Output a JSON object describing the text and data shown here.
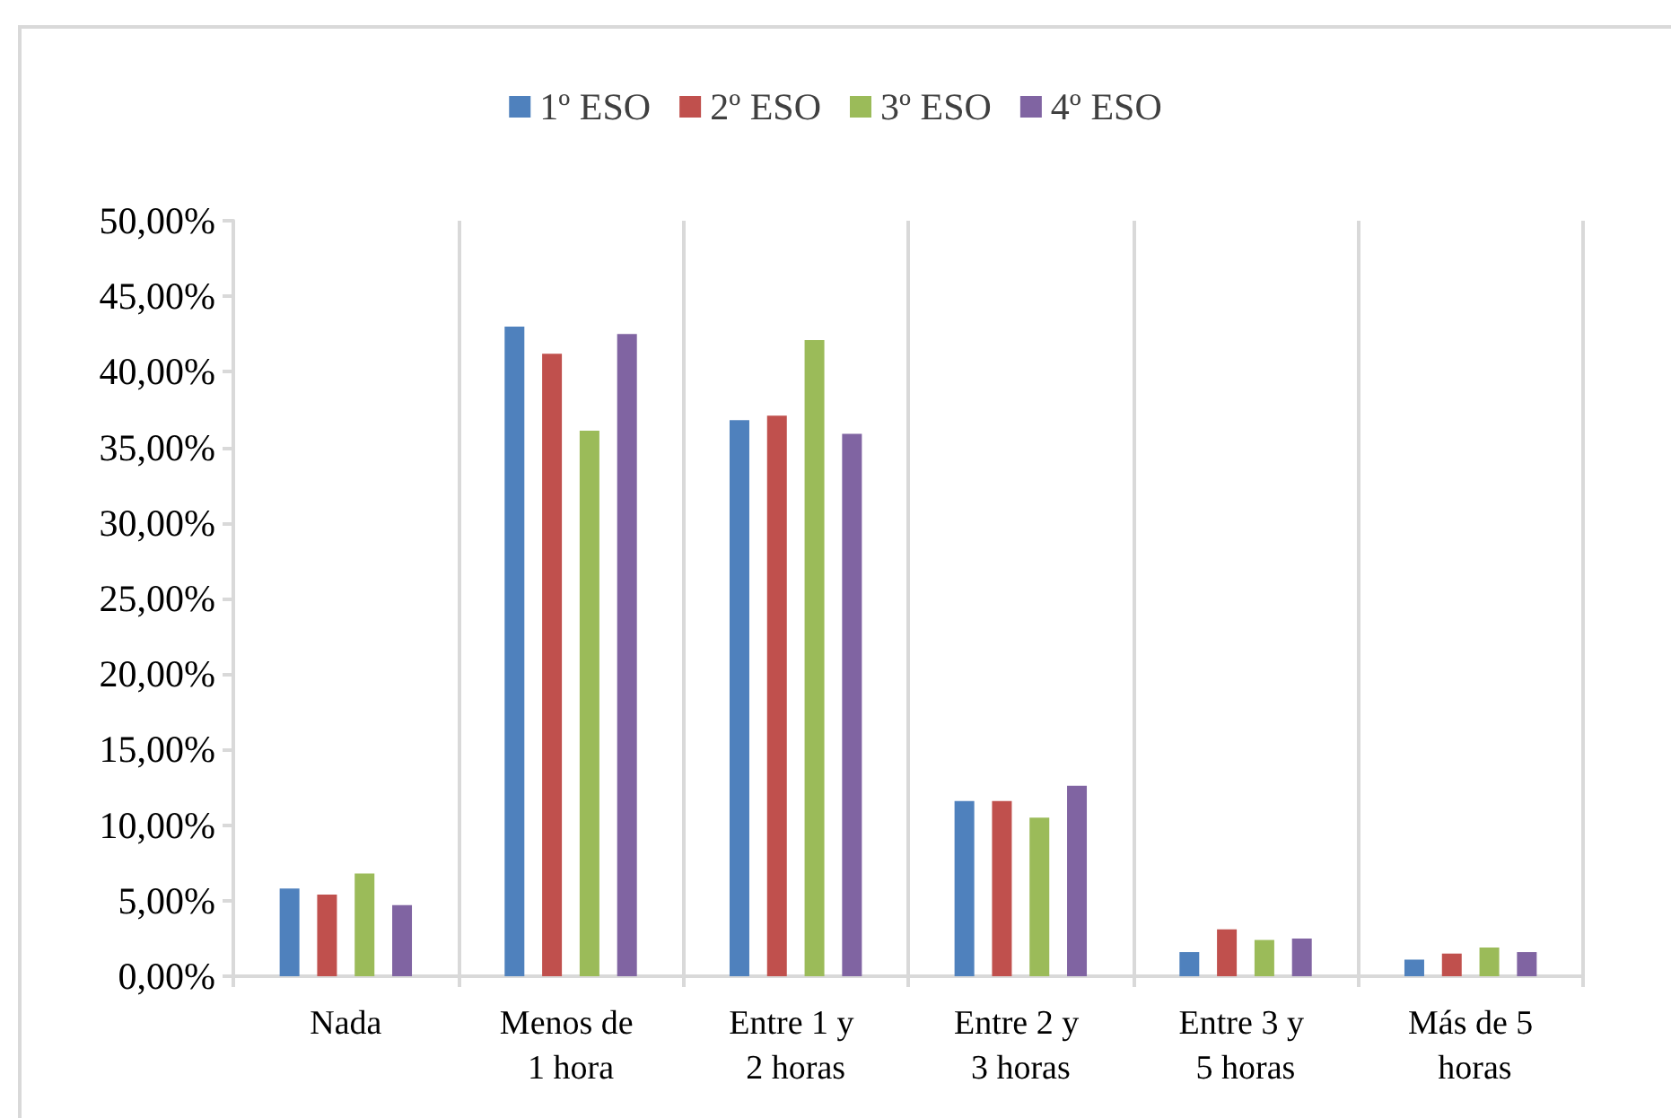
{
  "chart_data": {
    "type": "bar",
    "categories": [
      "Nada",
      "Menos de 1 hora",
      "Entre 1 y 2 horas",
      "Entre 2 y 3 horas",
      "Entre 3 y 5 horas",
      "Más de 5 horas"
    ],
    "series": [
      {
        "name": "1º ESO",
        "color": "#4f81bd",
        "values": [
          5.8,
          43.0,
          36.8,
          11.6,
          1.6,
          1.1
        ]
      },
      {
        "name": "2º ESO",
        "color": "#c0504d",
        "values": [
          5.4,
          41.2,
          37.1,
          11.6,
          3.1,
          1.5
        ]
      },
      {
        "name": "3º ESO",
        "color": "#9bbb59",
        "values": [
          6.8,
          36.1,
          42.1,
          10.5,
          2.4,
          1.9
        ]
      },
      {
        "name": "4º ESO",
        "color": "#8064a2",
        "values": [
          4.7,
          42.5,
          35.9,
          12.6,
          2.5,
          1.6
        ]
      }
    ],
    "ylim": [
      0,
      50
    ],
    "yticks": [
      {
        "value": 0,
        "label": "0,00%"
      },
      {
        "value": 5,
        "label": "5,00%"
      },
      {
        "value": 10,
        "label": "10,00%"
      },
      {
        "value": 15,
        "label": "15,00%"
      },
      {
        "value": 20,
        "label": "20,00%"
      },
      {
        "value": 25,
        "label": "25,00%"
      },
      {
        "value": 30,
        "label": "30,00%"
      },
      {
        "value": 35,
        "label": "35,00%"
      },
      {
        "value": 40,
        "label": "40,00%"
      },
      {
        "value": 45,
        "label": "45,00%"
      },
      {
        "value": 50,
        "label": "50,00%"
      }
    ],
    "grid": "x",
    "legend": "top"
  }
}
